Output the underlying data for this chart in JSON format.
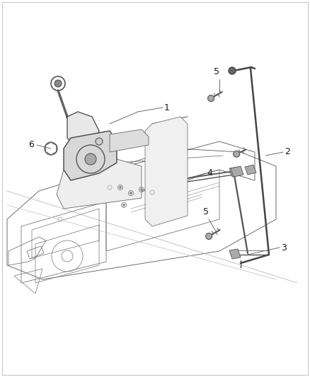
{
  "bg_color": "#ffffff",
  "line_color": "#3a3a3a",
  "label_color": "#1a1a1a",
  "fig_width": 4.38,
  "fig_height": 5.33,
  "dpi": 100,
  "border_color": "#aaaaaa",
  "lw_main": 1.0,
  "lw_thin": 0.6,
  "lw_thick": 1.8,
  "label_fontsize": 9,
  "callout_lw": 0.6
}
